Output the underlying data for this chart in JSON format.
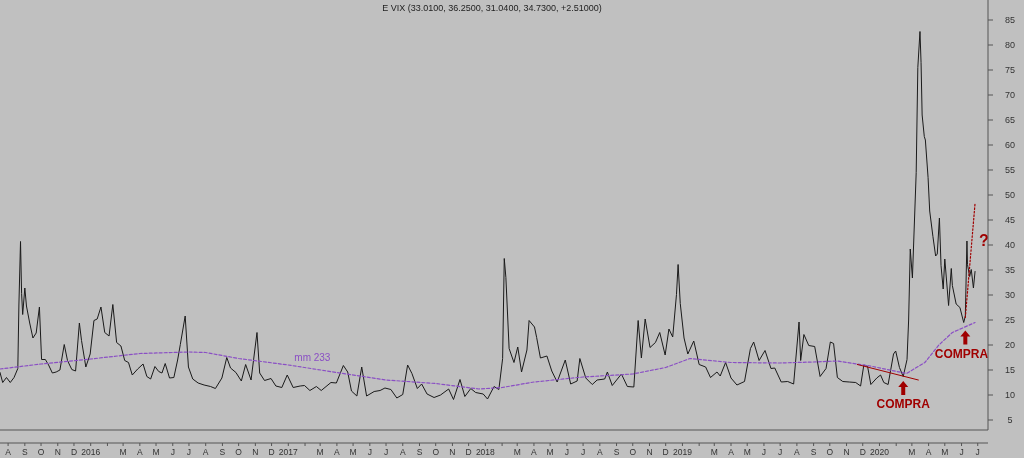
{
  "chart_data": {
    "type": "line",
    "title": "E VIX (33.0100, 36.2500, 31.0400, 34.7300, +2.51000)",
    "xlim": [
      "2015-07-17",
      "2020-07-20"
    ],
    "ylim": [
      3,
      89
    ],
    "yticks": [
      5,
      10,
      15,
      20,
      25,
      30,
      35,
      40,
      45,
      50,
      55,
      60,
      65,
      70,
      75,
      80,
      85
    ],
    "xticks": [
      {
        "value": "2015-08-01",
        "label": "A"
      },
      {
        "value": "2015-09-01",
        "label": "S"
      },
      {
        "value": "2015-10-01",
        "label": "O"
      },
      {
        "value": "2015-11-01",
        "label": "N"
      },
      {
        "value": "2015-12-01",
        "label": "D"
      },
      {
        "value": "2016-01-01",
        "label": "2016"
      },
      {
        "value": "2016-02-01",
        "label": null
      },
      {
        "value": "2016-03-01",
        "label": "M"
      },
      {
        "value": "2016-04-01",
        "label": "A"
      },
      {
        "value": "2016-05-01",
        "label": "M"
      },
      {
        "value": "2016-06-01",
        "label": "J"
      },
      {
        "value": "2016-07-01",
        "label": "J"
      },
      {
        "value": "2016-08-01",
        "label": "A"
      },
      {
        "value": "2016-09-01",
        "label": "S"
      },
      {
        "value": "2016-10-01",
        "label": "O"
      },
      {
        "value": "2016-11-01",
        "label": "N"
      },
      {
        "value": "2016-12-01",
        "label": "D"
      },
      {
        "value": "2017-01-01",
        "label": "2017"
      },
      {
        "value": "2017-02-01",
        "label": null
      },
      {
        "value": "2017-03-01",
        "label": "M"
      },
      {
        "value": "2017-04-01",
        "label": "A"
      },
      {
        "value": "2017-05-01",
        "label": "M"
      },
      {
        "value": "2017-06-01",
        "label": "J"
      },
      {
        "value": "2017-07-01",
        "label": "J"
      },
      {
        "value": "2017-08-01",
        "label": "A"
      },
      {
        "value": "2017-09-01",
        "label": "S"
      },
      {
        "value": "2017-10-01",
        "label": "O"
      },
      {
        "value": "2017-11-01",
        "label": "N"
      },
      {
        "value": "2017-12-01",
        "label": "D"
      },
      {
        "value": "2018-01-01",
        "label": "2018"
      },
      {
        "value": "2018-02-01",
        "label": null
      },
      {
        "value": "2018-03-01",
        "label": "M"
      },
      {
        "value": "2018-04-01",
        "label": "A"
      },
      {
        "value": "2018-05-01",
        "label": "M"
      },
      {
        "value": "2018-06-01",
        "label": "J"
      },
      {
        "value": "2018-07-01",
        "label": "J"
      },
      {
        "value": "2018-08-01",
        "label": "A"
      },
      {
        "value": "2018-09-01",
        "label": "S"
      },
      {
        "value": "2018-10-01",
        "label": "O"
      },
      {
        "value": "2018-11-01",
        "label": "N"
      },
      {
        "value": "2018-12-01",
        "label": "D"
      },
      {
        "value": "2019-01-01",
        "label": "2019"
      },
      {
        "value": "2019-02-01",
        "label": null
      },
      {
        "value": "2019-03-01",
        "label": "M"
      },
      {
        "value": "2019-04-01",
        "label": "A"
      },
      {
        "value": "2019-05-01",
        "label": "M"
      },
      {
        "value": "2019-06-01",
        "label": "J"
      },
      {
        "value": "2019-07-01",
        "label": "J"
      },
      {
        "value": "2019-08-01",
        "label": "A"
      },
      {
        "value": "2019-09-01",
        "label": "S"
      },
      {
        "value": "2019-10-01",
        "label": "O"
      },
      {
        "value": "2019-11-01",
        "label": "N"
      },
      {
        "value": "2019-12-01",
        "label": "D"
      },
      {
        "value": "2020-01-01",
        "label": "2020"
      },
      {
        "value": "2020-02-01",
        "label": null
      },
      {
        "value": "2020-03-01",
        "label": "M"
      },
      {
        "value": "2020-04-01",
        "label": "A"
      },
      {
        "value": "2020-05-01",
        "label": "M"
      },
      {
        "value": "2020-06-01",
        "label": "J"
      },
      {
        "value": "2020-07-01",
        "label": "J"
      }
    ],
    "grid": false,
    "legend": false,
    "marker": "none",
    "series": [
      {
        "color": "#1a1a1a",
        "line_style": "solid",
        "x": [
          "2015-07-17",
          "2015-07-22",
          "2015-07-29",
          "2015-08-05",
          "2015-08-12",
          "2015-08-19",
          "2015-08-21",
          "2015-08-24",
          "2015-08-26",
          "2015-08-28",
          "2015-09-01",
          "2015-09-04",
          "2015-09-10",
          "2015-09-16",
          "2015-09-22",
          "2015-09-28",
          "2015-10-02",
          "2015-10-09",
          "2015-10-15",
          "2015-10-22",
          "2015-10-29",
          "2015-11-05",
          "2015-11-13",
          "2015-11-19",
          "2015-11-27",
          "2015-12-04",
          "2015-12-11",
          "2015-12-15",
          "2015-12-23",
          "2015-12-31",
          "2016-01-07",
          "2016-01-13",
          "2016-01-20",
          "2016-01-27",
          "2016-02-04",
          "2016-02-11",
          "2016-02-18",
          "2016-02-26",
          "2016-03-04",
          "2016-03-11",
          "2016-03-18",
          "2016-03-28",
          "2016-04-07",
          "2016-04-14",
          "2016-04-21",
          "2016-04-29",
          "2016-05-06",
          "2016-05-12",
          "2016-05-18",
          "2016-05-26",
          "2016-06-03",
          "2016-06-10",
          "2016-06-15",
          "2016-06-24",
          "2016-06-30",
          "2016-07-08",
          "2016-07-18",
          "2016-07-29",
          "2016-08-10",
          "2016-08-19",
          "2016-08-31",
          "2016-09-09",
          "2016-09-16",
          "2016-09-26",
          "2016-10-06",
          "2016-10-14",
          "2016-10-24",
          "2016-11-04",
          "2016-11-09",
          "2016-11-18",
          "2016-11-30",
          "2016-12-09",
          "2016-12-20",
          "2016-12-30",
          "2017-01-10",
          "2017-01-23",
          "2017-01-31",
          "2017-02-10",
          "2017-02-22",
          "2017-03-03",
          "2017-03-21",
          "2017-03-31",
          "2017-04-13",
          "2017-04-21",
          "2017-04-28",
          "2017-05-08",
          "2017-05-17",
          "2017-05-26",
          "2017-06-09",
          "2017-06-20",
          "2017-06-29",
          "2017-07-10",
          "2017-07-21",
          "2017-08-01",
          "2017-08-10",
          "2017-08-18",
          "2017-08-28",
          "2017-09-05",
          "2017-09-15",
          "2017-09-28",
          "2017-10-10",
          "2017-10-25",
          "2017-11-03",
          "2017-11-15",
          "2017-11-24",
          "2017-12-05",
          "2017-12-14",
          "2017-12-28",
          "2018-01-05",
          "2018-01-17",
          "2018-01-26",
          "2018-02-02",
          "2018-02-05",
          "2018-02-08",
          "2018-02-14",
          "2018-02-23",
          "2018-03-02",
          "2018-03-09",
          "2018-03-19",
          "2018-03-23",
          "2018-04-02",
          "2018-04-06",
          "2018-04-13",
          "2018-04-25",
          "2018-05-04",
          "2018-05-14",
          "2018-05-29",
          "2018-06-08",
          "2018-06-20",
          "2018-06-25",
          "2018-07-06",
          "2018-07-18",
          "2018-07-27",
          "2018-08-10",
          "2018-08-15",
          "2018-08-24",
          "2018-09-10",
          "2018-09-21",
          "2018-10-03",
          "2018-10-11",
          "2018-10-17",
          "2018-10-24",
          "2018-11-02",
          "2018-11-12",
          "2018-11-20",
          "2018-11-30",
          "2018-12-07",
          "2018-12-14",
          "2018-12-21",
          "2018-12-24",
          "2018-12-28",
          "2019-01-04",
          "2019-01-11",
          "2019-01-22",
          "2019-02-01",
          "2019-02-13",
          "2019-02-22",
          "2019-03-06",
          "2019-03-12",
          "2019-03-22",
          "2019-04-01",
          "2019-04-12",
          "2019-04-26",
          "2019-05-07",
          "2019-05-13",
          "2019-05-23",
          "2019-06-03",
          "2019-06-14",
          "2019-06-21",
          "2019-07-03",
          "2019-07-15",
          "2019-07-26",
          "2019-08-05",
          "2019-08-08",
          "2019-08-14",
          "2019-08-23",
          "2019-09-03",
          "2019-09-13",
          "2019-09-24",
          "2019-10-02",
          "2019-10-08",
          "2019-10-15",
          "2019-10-25",
          "2019-11-06",
          "2019-11-18",
          "2019-11-27",
          "2019-12-03",
          "2019-12-10",
          "2019-12-16",
          "2019-12-27",
          "2020-01-03",
          "2020-01-09",
          "2020-01-17",
          "2020-01-27",
          "2020-01-31",
          "2020-02-07",
          "2020-02-14",
          "2020-02-21",
          "2020-02-24",
          "2020-02-27",
          "2020-03-02",
          "2020-03-09",
          "2020-03-12",
          "2020-03-16",
          "2020-03-18",
          "2020-03-20",
          "2020-03-24",
          "2020-03-26",
          "2020-03-31",
          "2020-04-03",
          "2020-04-09",
          "2020-04-14",
          "2020-04-17",
          "2020-04-21",
          "2020-04-24",
          "2020-04-28",
          "2020-05-01",
          "2020-05-08",
          "2020-05-13",
          "2020-05-15",
          "2020-05-22",
          "2020-05-29",
          "2020-06-05",
          "2020-06-08",
          "2020-06-11",
          "2020-06-12",
          "2020-06-16",
          "2020-06-19",
          "2020-06-23",
          "2020-06-26"
        ],
        "values": [
          14.5,
          12.5,
          13.5,
          12.5,
          13.5,
          15.3,
          28,
          40.7,
          30.3,
          26.1,
          31.4,
          27.8,
          24.4,
          21.4,
          22.4,
          27.6,
          17.1,
          17.1,
          16,
          14.4,
          14.6,
          15,
          20.1,
          16.9,
          15.1,
          14.8,
          24.4,
          20.9,
          15.6,
          18.2,
          24.9,
          25.2,
          27.6,
          22.5,
          21.8,
          28.1,
          20.5,
          19.8,
          16.9,
          16.5,
          14,
          15.2,
          16.2,
          13.7,
          13.2,
          15.7,
          14.7,
          14.4,
          16.3,
          13.4,
          13.5,
          17,
          20.1,
          25.8,
          15.6,
          13.2,
          12.4,
          12,
          11.7,
          11.3,
          13.4,
          17.5,
          15.4,
          14.5,
          12.8,
          16.1,
          13,
          22.5,
          14.4,
          12.9,
          13.3,
          11.8,
          11.5,
          14,
          11.5,
          11.8,
          11.9,
          10.9,
          11.7,
          10.9,
          12.5,
          12.4,
          15.9,
          14.6,
          10.8,
          9.8,
          15.6,
          9.8,
          10.7,
          10.9,
          11.4,
          11.1,
          9.4,
          10.1,
          16,
          14.3,
          11.3,
          12.2,
          10.2,
          9.5,
          10,
          11.2,
          9.1,
          13.1,
          9.7,
          11.3,
          10.5,
          10.2,
          9.2,
          11.7,
          11.1,
          17.3,
          37.3,
          33.5,
          19.3,
          16.5,
          19.6,
          14.6,
          19,
          24.9,
          23.6,
          21.5,
          17.4,
          17.8,
          14.8,
          12.6,
          17,
          12.2,
          12.8,
          17.3,
          13.4,
          12.1,
          13,
          13.2,
          14.6,
          11.9,
          14.2,
          11.7,
          11.6,
          24.9,
          17.4,
          25.2,
          19.5,
          20.5,
          22.5,
          18,
          23.2,
          21.6,
          30.1,
          36.1,
          28.3,
          21.4,
          18.2,
          20.8,
          16.1,
          15.6,
          13.5,
          14.6,
          13.8,
          16.5,
          13.4,
          12,
          12.7,
          19.3,
          20.6,
          16.9,
          18.9,
          15.3,
          15.4,
          12.6,
          12.7,
          12.2,
          24.6,
          16.9,
          22.1,
          19.9,
          19.7,
          13.7,
          15.3,
          20.6,
          20.3,
          13.5,
          12.7,
          12.6,
          12.5,
          11.8,
          16,
          15.7,
          12.1,
          13.4,
          14,
          12.5,
          12.1,
          18.2,
          18.8,
          15.5,
          13.7,
          17.1,
          25,
          39.2,
          33.4,
          54.5,
          75.5,
          82.7,
          76.5,
          66,
          61.7,
          61,
          53.5,
          46.8,
          41.7,
          37.8,
          38.2,
          45.4,
          35.9,
          31.2,
          37.2,
          27.9,
          35.3,
          31.9,
          28.2,
          27.5,
          24.5,
          25.8,
          40.8,
          36.1,
          33.7,
          35.1,
          31.4,
          34.7
        ]
      },
      {
        "name": "mm 233",
        "color": "#8a4fc4",
        "line_style": "dashed",
        "x": [
          "2015-07-17",
          "2015-10-01",
          "2016-01-01",
          "2016-04-01",
          "2016-07-01",
          "2016-08-01",
          "2016-10-01",
          "2017-01-01",
          "2017-04-01",
          "2017-07-01",
          "2017-10-01",
          "2017-12-20",
          "2018-02-01",
          "2018-04-01",
          "2018-07-01",
          "2018-10-01",
          "2018-12-01",
          "2019-01-15",
          "2019-04-01",
          "2019-07-01",
          "2019-09-01",
          "2019-10-15",
          "2019-12-15",
          "2020-02-20",
          "2020-03-25",
          "2020-04-20",
          "2020-05-15",
          "2020-06-26"
        ],
        "values": [
          15.2,
          16.2,
          17.2,
          18.3,
          18.6,
          18.5,
          17.3,
          16,
          14.5,
          13,
          12.3,
          11.2,
          11.5,
          12.6,
          13.6,
          14.2,
          15.5,
          17.3,
          16.5,
          16.4,
          16.6,
          16.8,
          15.8,
          14.3,
          16.5,
          20,
          22.5,
          24.5
        ]
      },
      {
        "color": "#a00000",
        "line_style": "solid",
        "x": [
          "2019-11-21",
          "2020-03-13"
        ],
        "values": [
          16.1,
          13
        ]
      },
      {
        "color": "#a00000",
        "line_style": "dotted",
        "x": [
          "2020-06-08",
          "2020-06-26"
        ],
        "values": [
          25.5,
          48.3
        ]
      }
    ],
    "annotations": [
      {
        "text": "COMPRA",
        "x": "2020-02-14",
        "y": 13.8
      },
      {
        "text": "COMPRA",
        "x": "2020-06-08",
        "y": 23.9
      },
      {
        "text": "?",
        "x": "2020-06-26",
        "y": 41
      }
    ]
  }
}
